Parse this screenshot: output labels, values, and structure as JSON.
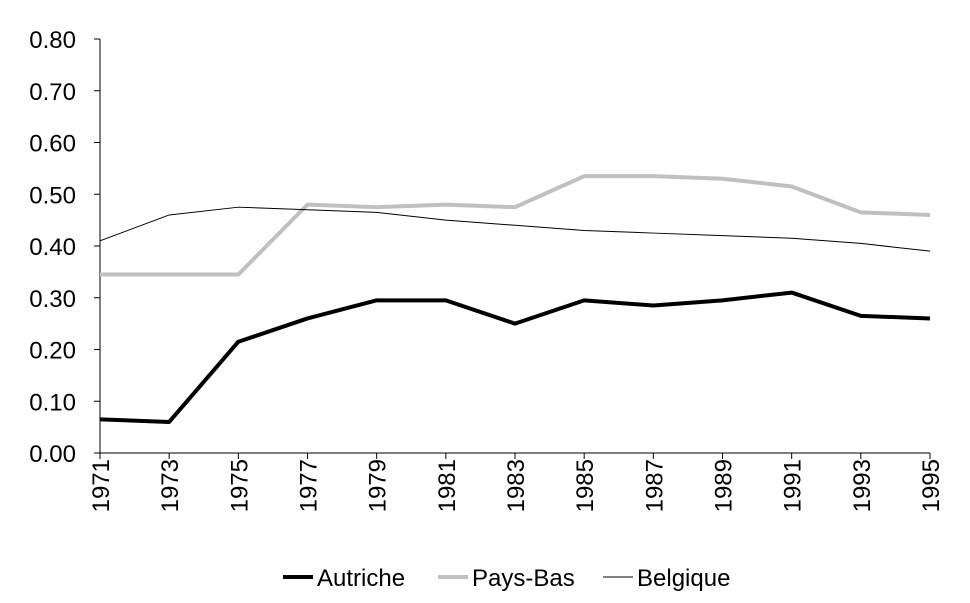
{
  "chart_data": {
    "type": "line",
    "x": [
      1971,
      1973,
      1975,
      1977,
      1979,
      1981,
      1983,
      1985,
      1987,
      1989,
      1991,
      1993,
      1995
    ],
    "xlim": [
      1971,
      1995
    ],
    "xticks": [
      1971,
      1973,
      1975,
      1977,
      1979,
      1981,
      1983,
      1985,
      1987,
      1989,
      1991,
      1993,
      1995
    ],
    "ylim": [
      0,
      0.8
    ],
    "yticks": [
      {
        "value": 0,
        "label": "0.00"
      },
      {
        "value": 0.1,
        "label": "0.10"
      },
      {
        "value": 0.2,
        "label": "0.20"
      },
      {
        "value": 0.3,
        "label": "0.30"
      },
      {
        "value": 0.4,
        "label": "0.40"
      },
      {
        "value": 0.5,
        "label": "0.50"
      },
      {
        "value": 0.6,
        "label": "0.60"
      },
      {
        "value": 0.7,
        "label": "0.70"
      },
      {
        "value": 0.8,
        "label": "0.80"
      }
    ],
    "grid": false,
    "legend": "bottom",
    "series": [
      {
        "name": "Autriche",
        "color": "#000000",
        "line_width": 4,
        "values": [
          0.065,
          0.06,
          0.215,
          0.26,
          0.295,
          0.295,
          0.25,
          0.295,
          0.285,
          0.295,
          0.31,
          0.265,
          0.26
        ]
      },
      {
        "name": "Pays-Bas",
        "color": "#c0c0c0",
        "line_width": 4,
        "values": [
          0.345,
          0.345,
          0.345,
          0.48,
          0.475,
          0.48,
          0.475,
          0.535,
          0.535,
          0.53,
          0.515,
          0.465,
          0.46
        ]
      },
      {
        "name": "Belgique",
        "color": "#000000",
        "line_width": 1,
        "values": [
          0.41,
          0.46,
          0.475,
          0.47,
          0.465,
          0.45,
          0.44,
          0.43,
          0.425,
          0.42,
          0.415,
          0.405,
          0.39
        ]
      }
    ]
  }
}
